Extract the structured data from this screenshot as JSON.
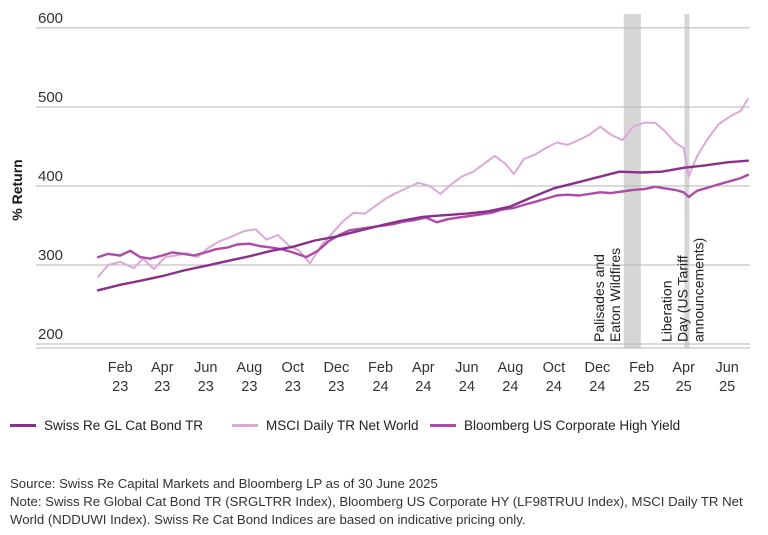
{
  "chart_data": {
    "type": "line",
    "ylabel": "% Return",
    "ylim": [
      195,
      610
    ],
    "yticks": [
      200,
      300,
      400,
      500,
      600
    ],
    "x_range": [
      "2022-12-15",
      "2025-07-03"
    ],
    "x_ticks": [
      {
        "date": "2023-02-01",
        "month": "Feb",
        "year": "23"
      },
      {
        "date": "2023-04-01",
        "month": "Apr",
        "year": "23"
      },
      {
        "date": "2023-06-01",
        "month": "Jun",
        "year": "23"
      },
      {
        "date": "2023-08-01",
        "month": "Aug",
        "year": "23"
      },
      {
        "date": "2023-10-01",
        "month": "Oct",
        "year": "23"
      },
      {
        "date": "2023-12-01",
        "month": "Dec",
        "year": "23"
      },
      {
        "date": "2024-02-01",
        "month": "Feb",
        "year": "24"
      },
      {
        "date": "2024-04-01",
        "month": "Apr",
        "year": "24"
      },
      {
        "date": "2024-06-01",
        "month": "Jun",
        "year": "24"
      },
      {
        "date": "2024-08-01",
        "month": "Aug",
        "year": "24"
      },
      {
        "date": "2024-10-01",
        "month": "Oct",
        "year": "24"
      },
      {
        "date": "2024-12-01",
        "month": "Dec",
        "year": "24"
      },
      {
        "date": "2025-02-01",
        "month": "Feb",
        "year": "25"
      },
      {
        "date": "2025-04-01",
        "month": "Apr",
        "year": "25"
      },
      {
        "date": "2025-06-01",
        "month": "Jun",
        "year": "25"
      }
    ],
    "grid": "horizontal",
    "legend_position": "bottom",
    "series": [
      {
        "name": "Swiss Re GL Cat Bond TR",
        "color": "#8a2f8c",
        "points": [
          [
            "2023-01-01",
            268
          ],
          [
            "2023-02-01",
            275
          ],
          [
            "2023-03-01",
            280
          ],
          [
            "2023-04-01",
            286
          ],
          [
            "2023-05-01",
            293
          ],
          [
            "2023-06-01",
            299
          ],
          [
            "2023-07-01",
            305
          ],
          [
            "2023-08-01",
            311
          ],
          [
            "2023-09-01",
            318
          ],
          [
            "2023-10-01",
            323
          ],
          [
            "2023-11-01",
            331
          ],
          [
            "2023-12-01",
            336
          ],
          [
            "2024-01-01",
            343
          ],
          [
            "2024-02-01",
            350
          ],
          [
            "2024-03-01",
            356
          ],
          [
            "2024-04-01",
            361
          ],
          [
            "2024-05-01",
            363
          ],
          [
            "2024-06-01",
            365
          ],
          [
            "2024-07-01",
            368
          ],
          [
            "2024-08-01",
            374
          ],
          [
            "2024-09-01",
            386
          ],
          [
            "2024-10-01",
            397
          ],
          [
            "2024-11-01",
            404
          ],
          [
            "2024-12-01",
            411
          ],
          [
            "2025-01-01",
            418
          ],
          [
            "2025-02-01",
            417
          ],
          [
            "2025-03-01",
            418
          ],
          [
            "2025-04-01",
            423
          ],
          [
            "2025-05-01",
            426
          ],
          [
            "2025-06-01",
            430
          ],
          [
            "2025-06-30",
            432
          ]
        ]
      },
      {
        "name": "MSCI Daily TR Net World",
        "color": "#dca8d8",
        "points": [
          [
            "2023-01-01",
            285
          ],
          [
            "2023-01-15",
            300
          ],
          [
            "2023-02-01",
            304
          ],
          [
            "2023-02-20",
            296
          ],
          [
            "2023-03-05",
            308
          ],
          [
            "2023-03-20",
            295
          ],
          [
            "2023-04-05",
            310
          ],
          [
            "2023-04-20",
            312
          ],
          [
            "2023-05-05",
            315
          ],
          [
            "2023-05-20",
            310
          ],
          [
            "2023-06-05",
            322
          ],
          [
            "2023-06-20",
            330
          ],
          [
            "2023-07-05",
            335
          ],
          [
            "2023-07-25",
            343
          ],
          [
            "2023-08-10",
            345
          ],
          [
            "2023-08-25",
            332
          ],
          [
            "2023-09-10",
            338
          ],
          [
            "2023-09-25",
            325
          ],
          [
            "2023-10-10",
            318
          ],
          [
            "2023-10-25",
            302
          ],
          [
            "2023-11-10",
            325
          ],
          [
            "2023-11-25",
            340
          ],
          [
            "2023-12-10",
            355
          ],
          [
            "2023-12-25",
            366
          ],
          [
            "2024-01-10",
            365
          ],
          [
            "2024-01-25",
            375
          ],
          [
            "2024-02-10",
            385
          ],
          [
            "2024-02-25",
            392
          ],
          [
            "2024-03-10",
            398
          ],
          [
            "2024-03-25",
            404
          ],
          [
            "2024-04-10",
            400
          ],
          [
            "2024-04-25",
            390
          ],
          [
            "2024-05-10",
            402
          ],
          [
            "2024-05-25",
            412
          ],
          [
            "2024-06-10",
            418
          ],
          [
            "2024-06-25",
            428
          ],
          [
            "2024-07-10",
            438
          ],
          [
            "2024-07-25",
            428
          ],
          [
            "2024-08-06",
            415
          ],
          [
            "2024-08-20",
            434
          ],
          [
            "2024-09-05",
            440
          ],
          [
            "2024-09-20",
            448
          ],
          [
            "2024-10-05",
            455
          ],
          [
            "2024-10-20",
            452
          ],
          [
            "2024-11-05",
            458
          ],
          [
            "2024-11-20",
            465
          ],
          [
            "2024-12-05",
            475
          ],
          [
            "2024-12-20",
            465
          ],
          [
            "2025-01-05",
            458
          ],
          [
            "2025-01-20",
            475
          ],
          [
            "2025-02-05",
            480
          ],
          [
            "2025-02-20",
            480
          ],
          [
            "2025-03-05",
            470
          ],
          [
            "2025-03-20",
            455
          ],
          [
            "2025-04-01",
            448
          ],
          [
            "2025-04-08",
            412
          ],
          [
            "2025-04-20",
            438
          ],
          [
            "2025-05-05",
            460
          ],
          [
            "2025-05-20",
            478
          ],
          [
            "2025-06-05",
            488
          ],
          [
            "2025-06-20",
            495
          ],
          [
            "2025-06-30",
            510
          ]
        ]
      },
      {
        "name": "Bloomberg US Corporate High Yield",
        "color": "#b04aa8",
        "points": [
          [
            "2023-01-01",
            310
          ],
          [
            "2023-01-15",
            314
          ],
          [
            "2023-02-01",
            312
          ],
          [
            "2023-02-15",
            318
          ],
          [
            "2023-03-01",
            310
          ],
          [
            "2023-03-15",
            308
          ],
          [
            "2023-04-01",
            312
          ],
          [
            "2023-04-15",
            316
          ],
          [
            "2023-05-01",
            314
          ],
          [
            "2023-05-15",
            312
          ],
          [
            "2023-06-01",
            316
          ],
          [
            "2023-06-15",
            320
          ],
          [
            "2023-07-01",
            322
          ],
          [
            "2023-07-15",
            326
          ],
          [
            "2023-08-01",
            327
          ],
          [
            "2023-08-15",
            324
          ],
          [
            "2023-09-01",
            322
          ],
          [
            "2023-09-15",
            320
          ],
          [
            "2023-10-01",
            316
          ],
          [
            "2023-10-20",
            310
          ],
          [
            "2023-11-05",
            318
          ],
          [
            "2023-11-20",
            330
          ],
          [
            "2023-12-05",
            338
          ],
          [
            "2023-12-20",
            344
          ],
          [
            "2024-01-05",
            346
          ],
          [
            "2024-01-20",
            348
          ],
          [
            "2024-02-05",
            350
          ],
          [
            "2024-02-20",
            352
          ],
          [
            "2024-03-05",
            355
          ],
          [
            "2024-03-20",
            357
          ],
          [
            "2024-04-05",
            360
          ],
          [
            "2024-04-20",
            354
          ],
          [
            "2024-05-05",
            358
          ],
          [
            "2024-05-20",
            360
          ],
          [
            "2024-06-05",
            362
          ],
          [
            "2024-06-20",
            364
          ],
          [
            "2024-07-05",
            366
          ],
          [
            "2024-07-20",
            370
          ],
          [
            "2024-08-05",
            372
          ],
          [
            "2024-08-20",
            376
          ],
          [
            "2024-09-05",
            380
          ],
          [
            "2024-09-20",
            384
          ],
          [
            "2024-10-05",
            388
          ],
          [
            "2024-10-20",
            389
          ],
          [
            "2024-11-05",
            388
          ],
          [
            "2024-11-20",
            390
          ],
          [
            "2024-12-05",
            392
          ],
          [
            "2024-12-20",
            391
          ],
          [
            "2025-01-05",
            393
          ],
          [
            "2025-01-20",
            395
          ],
          [
            "2025-02-05",
            396
          ],
          [
            "2025-02-20",
            399
          ],
          [
            "2025-03-05",
            397
          ],
          [
            "2025-03-20",
            395
          ],
          [
            "2025-04-01",
            392
          ],
          [
            "2025-04-08",
            386
          ],
          [
            "2025-04-20",
            394
          ],
          [
            "2025-05-05",
            398
          ],
          [
            "2025-05-20",
            402
          ],
          [
            "2025-06-05",
            406
          ],
          [
            "2025-06-20",
            410
          ],
          [
            "2025-06-30",
            414
          ]
        ]
      }
    ],
    "shaded_regions": [
      {
        "start": "2025-01-07",
        "end": "2025-01-31",
        "label_lines": [
          "Palisades and",
          "Eaton Wildfires"
        ]
      },
      {
        "start": "2025-04-02",
        "end": "2025-04-08",
        "label_lines": [
          "Liberation",
          "Day (US Tariff",
          "announcements)"
        ]
      }
    ]
  },
  "legend": {
    "items": [
      {
        "label": "Swiss Re GL Cat Bond TR",
        "color": "#8a2f8c"
      },
      {
        "label": "MSCI Daily TR Net World",
        "color": "#dca8d8"
      },
      {
        "label": "Bloomberg US Corporate High Yield",
        "color": "#b04aa8"
      }
    ]
  },
  "footer": {
    "source": "Source: Swiss Re Capital Markets and Bloomberg LP as of 30 June 2025",
    "note": "Note: Swiss Re Global Cat Bond TR (SRGLTRR Index), Bloomberg US Corporate HY (LF98TRUU Index), MSCI Daily TR Net World (NDDUWI Index). Swiss Re Cat Bond Indices are based on indicative pricing only."
  }
}
